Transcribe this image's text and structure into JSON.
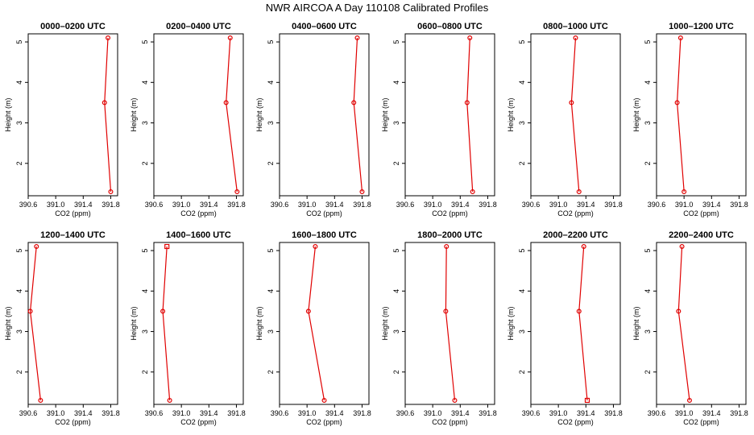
{
  "figure_title": "NWR AIRCOA A  Day 110108  Calibrated Profiles",
  "chart_data": [
    {
      "type": "line",
      "title": "0000–0200 UTC",
      "xlabel": "CO2 (ppm)",
      "ylabel": "Height (m)",
      "xlim": [
        390.6,
        391.9
      ],
      "ylim": [
        1.2,
        5.2
      ],
      "xticks": [
        "390.6",
        "391.0",
        "391.4",
        "391.8"
      ],
      "yticks": [
        "2",
        "3",
        "4",
        "5"
      ],
      "x": [
        391.76,
        391.71,
        391.8
      ],
      "y": [
        5.1,
        3.5,
        1.3
      ],
      "markers": [
        "circle",
        "circle",
        "circle"
      ]
    },
    {
      "type": "line",
      "title": "0200–0400 UTC",
      "xlabel": "CO2 (ppm)",
      "ylabel": "Height (m)",
      "xlim": [
        390.6,
        391.9
      ],
      "ylim": [
        1.2,
        5.2
      ],
      "xticks": [
        "390.6",
        "391.0",
        "391.4",
        "391.8"
      ],
      "yticks": [
        "2",
        "3",
        "4",
        "5"
      ],
      "x": [
        391.71,
        391.65,
        391.81
      ],
      "y": [
        5.1,
        3.5,
        1.3
      ],
      "markers": [
        "circle",
        "circle",
        "circle"
      ]
    },
    {
      "type": "line",
      "title": "0400–0600 UTC",
      "xlabel": "CO2 (ppm)",
      "ylabel": "Height (m)",
      "xlim": [
        390.6,
        391.9
      ],
      "ylim": [
        1.2,
        5.2
      ],
      "xticks": [
        "390.6",
        "391.0",
        "391.4",
        "391.8"
      ],
      "yticks": [
        "2",
        "3",
        "4",
        "5"
      ],
      "x": [
        391.73,
        391.68,
        391.8
      ],
      "y": [
        5.1,
        3.5,
        1.3
      ],
      "markers": [
        "circle",
        "circle",
        "circle"
      ]
    },
    {
      "type": "line",
      "title": "0600–0800 UTC",
      "xlabel": "CO2 (ppm)",
      "ylabel": "Height (m)",
      "xlim": [
        390.6,
        391.9
      ],
      "ylim": [
        1.2,
        5.2
      ],
      "xticks": [
        "390.6",
        "391.0",
        "391.4",
        "391.8"
      ],
      "yticks": [
        "2",
        "3",
        "4",
        "5"
      ],
      "x": [
        391.54,
        391.5,
        391.58
      ],
      "y": [
        5.1,
        3.5,
        1.3
      ],
      "markers": [
        "circle",
        "circle",
        "circle"
      ]
    },
    {
      "type": "line",
      "title": "0800–1000 UTC",
      "xlabel": "CO2 (ppm)",
      "ylabel": "Height (m)",
      "xlim": [
        390.6,
        391.9
      ],
      "ylim": [
        1.2,
        5.2
      ],
      "xticks": [
        "390.6",
        "391.0",
        "391.4",
        "391.8"
      ],
      "yticks": [
        "2",
        "3",
        "4",
        "5"
      ],
      "x": [
        391.25,
        391.19,
        391.3
      ],
      "y": [
        5.1,
        3.5,
        1.3
      ],
      "markers": [
        "circle",
        "circle",
        "circle"
      ]
    },
    {
      "type": "line",
      "title": "1000–1200 UTC",
      "xlabel": "CO2 (ppm)",
      "ylabel": "Height (m)",
      "xlim": [
        390.6,
        391.9
      ],
      "ylim": [
        1.2,
        5.2
      ],
      "xticks": [
        "390.6",
        "391.0",
        "391.4",
        "391.8"
      ],
      "yticks": [
        "2",
        "3",
        "4",
        "5"
      ],
      "x": [
        390.95,
        390.9,
        391.0
      ],
      "y": [
        5.1,
        3.5,
        1.3
      ],
      "markers": [
        "circle",
        "circle",
        "circle"
      ]
    },
    {
      "type": "line",
      "title": "1200–1400 UTC",
      "xlabel": "CO2 (ppm)",
      "ylabel": "Height (m)",
      "xlim": [
        390.6,
        391.9
      ],
      "ylim": [
        1.2,
        5.2
      ],
      "xticks": [
        "390.6",
        "391.0",
        "391.4",
        "391.8"
      ],
      "yticks": [
        "2",
        "3",
        "4",
        "5"
      ],
      "x": [
        390.72,
        390.63,
        390.78
      ],
      "y": [
        5.1,
        3.5,
        1.3
      ],
      "markers": [
        "circle",
        "circle",
        "circle"
      ]
    },
    {
      "type": "line",
      "title": "1400–1600 UTC",
      "xlabel": "CO2 (ppm)",
      "ylabel": "Height (m)",
      "xlim": [
        390.6,
        391.9
      ],
      "ylim": [
        1.2,
        5.2
      ],
      "xticks": [
        "390.6",
        "391.0",
        "391.4",
        "391.8"
      ],
      "yticks": [
        "2",
        "3",
        "4",
        "5"
      ],
      "x": [
        390.79,
        390.73,
        390.83
      ],
      "y": [
        5.1,
        3.5,
        1.3
      ],
      "markers": [
        "square",
        "circle",
        "circle"
      ]
    },
    {
      "type": "line",
      "title": "1600–1800 UTC",
      "xlabel": "CO2 (ppm)",
      "ylabel": "Height (m)",
      "xlim": [
        390.6,
        391.9
      ],
      "ylim": [
        1.2,
        5.2
      ],
      "xticks": [
        "390.6",
        "391.0",
        "391.4",
        "391.8"
      ],
      "yticks": [
        "2",
        "3",
        "4",
        "5"
      ],
      "x": [
        391.12,
        391.02,
        391.25
      ],
      "y": [
        5.1,
        3.5,
        1.3
      ],
      "markers": [
        "circle",
        "circle",
        "circle"
      ]
    },
    {
      "type": "line",
      "title": "1800–2000 UTC",
      "xlabel": "CO2 (ppm)",
      "ylabel": "Height (m)",
      "xlim": [
        390.6,
        391.9
      ],
      "ylim": [
        1.2,
        5.2
      ],
      "xticks": [
        "390.6",
        "391.0",
        "391.4",
        "391.8"
      ],
      "yticks": [
        "2",
        "3",
        "4",
        "5"
      ],
      "x": [
        391.2,
        391.19,
        391.32
      ],
      "y": [
        5.1,
        3.5,
        1.3
      ],
      "markers": [
        "circle",
        "circle",
        "circle"
      ]
    },
    {
      "type": "line",
      "title": "2000–2200 UTC",
      "xlabel": "CO2 (ppm)",
      "ylabel": "Height (m)",
      "xlim": [
        390.6,
        391.9
      ],
      "ylim": [
        1.2,
        5.2
      ],
      "xticks": [
        "390.6",
        "391.0",
        "391.4",
        "391.8"
      ],
      "yticks": [
        "2",
        "3",
        "4",
        "5"
      ],
      "x": [
        391.37,
        391.3,
        391.42
      ],
      "y": [
        5.1,
        3.5,
        1.3
      ],
      "markers": [
        "circle",
        "circle",
        "square"
      ]
    },
    {
      "type": "line",
      "title": "2200–2400 UTC",
      "xlabel": "CO2 (ppm)",
      "ylabel": "Height (m)",
      "xlim": [
        390.6,
        391.9
      ],
      "ylim": [
        1.2,
        5.2
      ],
      "xticks": [
        "390.6",
        "391.0",
        "391.4",
        "391.8"
      ],
      "yticks": [
        "2",
        "3",
        "4",
        "5"
      ],
      "x": [
        390.97,
        390.92,
        391.08
      ],
      "y": [
        5.1,
        3.5,
        1.3
      ],
      "markers": [
        "circle",
        "circle",
        "circle"
      ]
    }
  ],
  "colors": {
    "series": "#e00000",
    "axes": "#000000",
    "background": "#ffffff"
  }
}
